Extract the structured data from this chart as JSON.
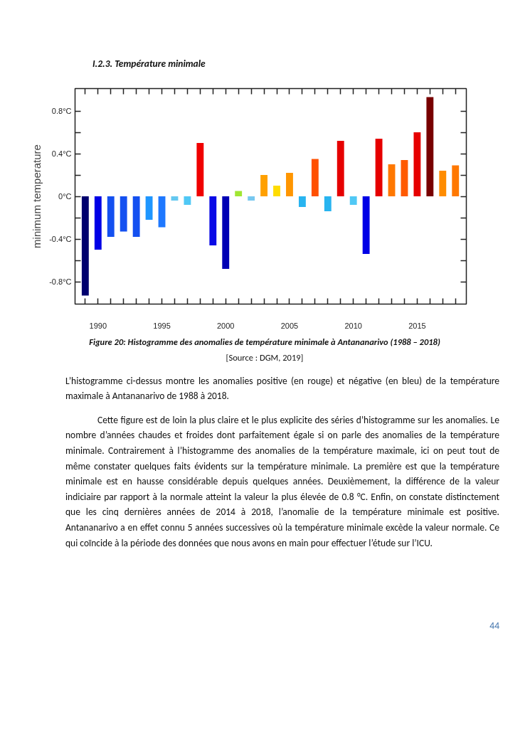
{
  "chart_data": {
    "type": "bar",
    "title": "I.2.3. Température minimale",
    "ylabel": "minimum temperature",
    "x": [
      1989,
      1990,
      1991,
      1992,
      1993,
      1994,
      1995,
      1996,
      1997,
      1998,
      1999,
      2000,
      2001,
      2002,
      2003,
      2004,
      2005,
      2006,
      2007,
      2008,
      2009,
      2010,
      2011,
      2012,
      2013,
      2014,
      2015,
      2016,
      2017,
      2018
    ],
    "values": [
      -0.93,
      -0.5,
      -0.38,
      -0.33,
      -0.38,
      -0.22,
      -0.29,
      -0.04,
      -0.08,
      0.5,
      -0.46,
      -0.68,
      0.05,
      -0.04,
      0.2,
      0.1,
      0.22,
      -0.1,
      0.35,
      -0.14,
      0.52,
      -0.08,
      -0.54,
      0.54,
      0.3,
      0.34,
      0.6,
      0.93,
      0.24,
      0.29
    ],
    "colors": [
      "#00006e",
      "#0000e6",
      "#1450f0",
      "#1450f0",
      "#1450f0",
      "#1e96ff",
      "#1e78ff",
      "#64c8f0",
      "#50c8f5",
      "#f00000",
      "#0a0ae6",
      "#0000b4",
      "#a0e632",
      "#78c8f0",
      "#ffa000",
      "#ffdc00",
      "#ff9600",
      "#28b4f0",
      "#ff5000",
      "#28b4f0",
      "#e60000",
      "#50c8f5",
      "#0000e6",
      "#e60000",
      "#ff7800",
      "#ff5a00",
      "#e60000",
      "#780000",
      "#ff8c00",
      "#ff7800"
    ],
    "xlim": [
      1988.2,
      2018.85
    ],
    "ylim": [
      -1.01,
      1.01
    ],
    "xticks": [
      {
        "value": 1989,
        "label": null
      },
      1990,
      {
        "value": 1991,
        "label": null
      },
      {
        "value": 1992,
        "label": null
      },
      {
        "value": 1993,
        "label": null
      },
      {
        "value": 1994,
        "label": null
      },
      1995,
      {
        "value": 1996,
        "label": null
      },
      {
        "value": 1997,
        "label": null
      },
      {
        "value": 1998,
        "label": null
      },
      {
        "value": 1999,
        "label": null
      },
      2000,
      {
        "value": 2001,
        "label": null
      },
      {
        "value": 2002,
        "label": null
      },
      {
        "value": 2003,
        "label": null
      },
      {
        "value": 2004,
        "label": null
      },
      2005,
      {
        "value": 2006,
        "label": null
      },
      {
        "value": 2007,
        "label": null
      },
      {
        "value": 2008,
        "label": null
      },
      {
        "value": 2009,
        "label": null
      },
      2010,
      {
        "value": 2011,
        "label": null
      },
      {
        "value": 2012,
        "label": null
      },
      {
        "value": 2013,
        "label": null
      },
      {
        "value": 2014,
        "label": null
      },
      2015,
      {
        "value": 2016,
        "label": null
      },
      {
        "value": 2017,
        "label": null
      },
      {
        "value": 2018,
        "label": null
      }
    ],
    "yticks": [
      {
        "value": -0.8,
        "label": "-0.8°C"
      },
      {
        "value": -0.6,
        "label": null
      },
      {
        "value": -0.4,
        "label": "-0.4°C"
      },
      {
        "value": -0.2,
        "label": null
      },
      {
        "value": 0,
        "label": "0°C"
      },
      {
        "value": 0.2,
        "label": null
      },
      {
        "value": 0.4,
        "label": "0.4°C"
      },
      {
        "value": 0.6,
        "label": null
      },
      {
        "value": 0.8,
        "label": "0.8°C"
      }
    ],
    "annotations": [
      "Figure 20: Histogramme des anomalies de température minimale à Antananarivo (1988 – 2018)",
      "[Source : DGM, 2019]",
      "L’histogramme ci-dessus montre les anomalies positive (en rouge) et négative (en bleu) de la température maximale à Antananarivo de 1988 à 2018.",
      "Cette figure est de loin la plus claire et le plus explicite des séries d’histogramme sur les anomalies. Le nombre d’années chaudes et froides dont parfaitement égale si on parle des anomalies de la température minimale. Contrairement à l’histogramme des anomalies de la température maximale, ici on peut tout de même constater quelques faits évidents sur la température minimale. La première est que la température minimale est en hausse considérable depuis quelques années. Deuxièmement, la différence de la valeur indiciaire par rapport à la normale atteint la valeur la plus élevée de 0.8 °C. Enfin, on constate distinctement que les cinq dernières années de 2014 à 2018, l’anomalie de la température minimale est positive. Antananarivo a en effet connu 5 années successives où la température minimale excède la valeur normale. Ce qui coïncide à la période des données que nous avons en main pour effectuer l’étude sur l’ICU.",
      "44"
    ]
  }
}
